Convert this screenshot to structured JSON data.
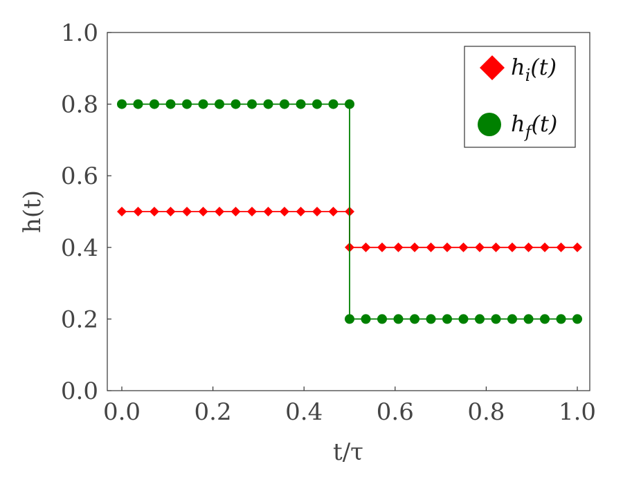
{
  "chart_data": {
    "type": "line",
    "xlabel": "t/τ",
    "ylabel": "h(t)",
    "xlim": [
      0.0,
      1.0
    ],
    "ylim": [
      0.0,
      1.0
    ],
    "xticks": [
      "0.0",
      "0.2",
      "0.4",
      "0.6",
      "0.8",
      "1.0"
    ],
    "yticks": [
      "0.0",
      "0.2",
      "0.4",
      "0.6",
      "0.8",
      "1.0"
    ],
    "grid": false,
    "legend_position": "top-right",
    "series": [
      {
        "name": "h_i(t)",
        "legend_base": "h",
        "legend_sub": "i",
        "legend_tail": "(t)",
        "marker": "diamond",
        "color": "#ff0000",
        "x": [
          0.0,
          0.0357,
          0.0714,
          0.1071,
          0.1429,
          0.1786,
          0.2143,
          0.25,
          0.2857,
          0.3214,
          0.3571,
          0.3929,
          0.4286,
          0.4643,
          0.5,
          0.5,
          0.5357,
          0.5714,
          0.6071,
          0.6429,
          0.6786,
          0.7143,
          0.75,
          0.7857,
          0.8214,
          0.8571,
          0.8929,
          0.9286,
          0.9643,
          1.0
        ],
        "y": [
          0.5,
          0.5,
          0.5,
          0.5,
          0.5,
          0.5,
          0.5,
          0.5,
          0.5,
          0.5,
          0.5,
          0.5,
          0.5,
          0.5,
          0.5,
          0.4,
          0.4,
          0.4,
          0.4,
          0.4,
          0.4,
          0.4,
          0.4,
          0.4,
          0.4,
          0.4,
          0.4,
          0.4,
          0.4,
          0.4
        ]
      },
      {
        "name": "h_f(t)",
        "legend_base": "h",
        "legend_sub": "f",
        "legend_tail": "(t)",
        "marker": "circle",
        "color": "#008000",
        "x": [
          0.0,
          0.0357,
          0.0714,
          0.1071,
          0.1429,
          0.1786,
          0.2143,
          0.25,
          0.2857,
          0.3214,
          0.3571,
          0.3929,
          0.4286,
          0.4643,
          0.5,
          0.5,
          0.5357,
          0.5714,
          0.6071,
          0.6429,
          0.6786,
          0.7143,
          0.75,
          0.7857,
          0.8214,
          0.8571,
          0.8929,
          0.9286,
          0.9643,
          1.0
        ],
        "y": [
          0.8,
          0.8,
          0.8,
          0.8,
          0.8,
          0.8,
          0.8,
          0.8,
          0.8,
          0.8,
          0.8,
          0.8,
          0.8,
          0.8,
          0.8,
          0.2,
          0.2,
          0.2,
          0.2,
          0.2,
          0.2,
          0.2,
          0.2,
          0.2,
          0.2,
          0.2,
          0.2,
          0.2,
          0.2,
          0.2
        ]
      }
    ]
  }
}
